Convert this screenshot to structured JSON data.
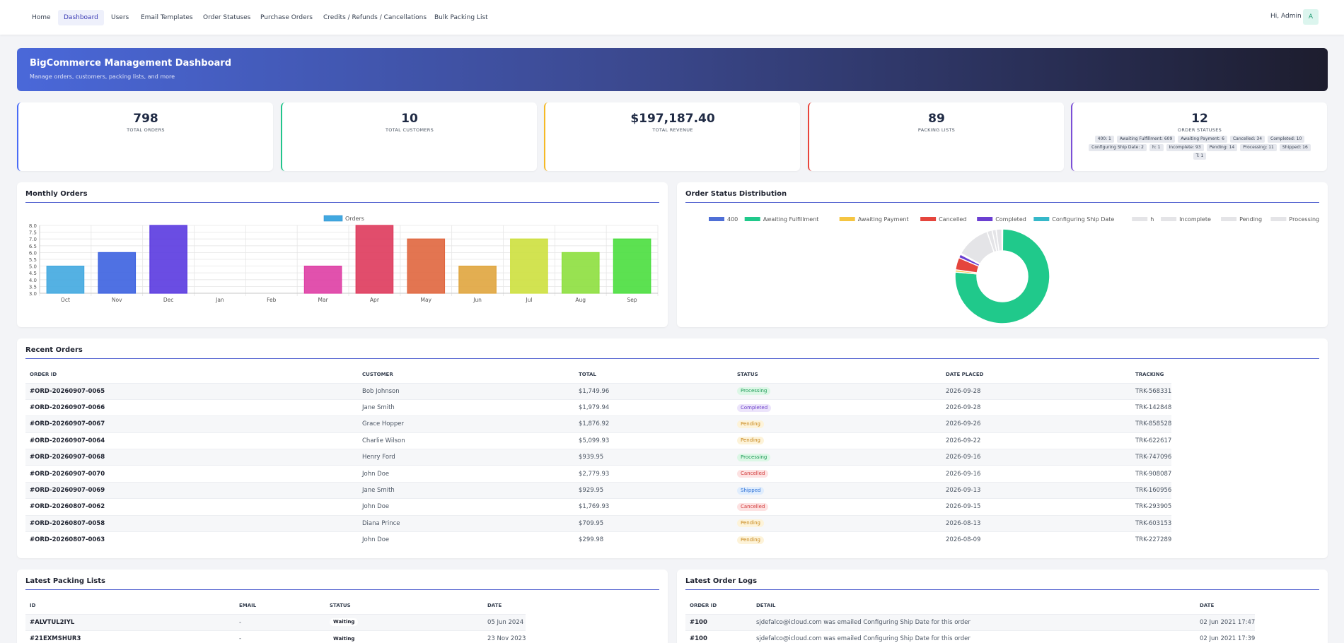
{
  "nav": {
    "items": [
      "Home",
      "Dashboard",
      "Users",
      "Email Templates",
      "Order Statuses",
      "Purchase Orders",
      "Credits / Refunds / Cancellations",
      "Bulk Packing List"
    ],
    "active_index": 1,
    "greeting": "Hi, Admin",
    "avatar_letter": "A"
  },
  "banner": {
    "title": "BigCommerce Management Dashboard",
    "subtitle": "Manage orders, customers, packing lists, and more"
  },
  "stats": [
    {
      "value": "798",
      "label": "TOTAL ORDERS",
      "color": "#4a6cf7"
    },
    {
      "value": "10",
      "label": "TOTAL CUSTOMERS",
      "color": "#22c58b"
    },
    {
      "value": "$197,187.40",
      "label": "TOTAL REVENUE",
      "color": "#f5b925"
    },
    {
      "value": "89",
      "label": "PACKING LISTS",
      "color": "#e8453c"
    },
    {
      "value": "12",
      "label": "ORDER STATUSES",
      "color": "#7b4fd6"
    }
  ],
  "status_chips": [
    "400: 1",
    "Awaiting Fulfillment: 609",
    "Awaiting Payment: 6",
    "Cancelled: 34",
    "Completed: 10",
    "Configuring Ship Date: 2",
    "h: 1",
    "Incomplete: 93",
    "Pending: 14",
    "Processing: 11",
    "Shipped: 16",
    "T: 1"
  ],
  "monthly": {
    "title": "Monthly Orders",
    "chart_data": {
      "type": "bar",
      "categories": [
        "Oct",
        "Nov",
        "Dec",
        "Jan",
        "Feb",
        "Mar",
        "Apr",
        "May",
        "Jun",
        "Jul",
        "Aug",
        "Sep"
      ],
      "series": [
        {
          "name": "Orders",
          "values": [
            5,
            6,
            8,
            null,
            null,
            5,
            8,
            7,
            5,
            7,
            6,
            7
          ]
        }
      ],
      "ylim": [
        3,
        8
      ],
      "yticks": [
        "3.0",
        "3.5",
        "4.0",
        "4.5",
        "5.0",
        "5.5",
        "6.0",
        "6.5",
        "7.0",
        "7.5",
        "8.0"
      ],
      "colors": [
        "#41a8e0",
        "#3c62e0",
        "#5a3ae0",
        "#6a36d9",
        "#b33ad8",
        "#de3ea4",
        "#de3a5c",
        "#e0663e",
        "#e0a53e",
        "#cde03e",
        "#8ddf3e",
        "#4ade3e"
      ],
      "grid": true,
      "legend": "top"
    }
  },
  "distribution": {
    "title": "Order Status Distribution",
    "chart_data": {
      "type": "pie",
      "labels": [
        "400",
        "Awaiting Fulfillment",
        "Awaiting Payment",
        "Cancelled",
        "Completed",
        "Configuring Ship Date",
        "h",
        "Incomplete",
        "Pending",
        "Processing",
        "Shipped",
        "T"
      ],
      "values": [
        1,
        609,
        6,
        34,
        10,
        2,
        1,
        93,
        14,
        11,
        16,
        1
      ],
      "colors": [
        "#4f6fd6",
        "#20c98b",
        "#f5c542",
        "#e5453d",
        "#6b3fd1",
        "#36b8c9",
        "#e4e4e7",
        "#e4e4e7",
        "#e4e4e7",
        "#e4e4e7",
        "#e4e4e7",
        "#e4e4e7"
      ],
      "legend": "top"
    }
  },
  "recent_orders": {
    "title": "Recent Orders",
    "headers": [
      "ORDER ID",
      "CUSTOMER",
      "TOTAL",
      "STATUS",
      "DATE PLACED",
      "TRACKING"
    ],
    "rows": [
      [
        "#ORD-20260907-0065",
        "Bob Johnson",
        "$1,749.96",
        "Processing",
        "2026-09-28",
        "TRK-568331"
      ],
      [
        "#ORD-20260907-0066",
        "Jane Smith",
        "$1,979.94",
        "Completed",
        "2026-09-28",
        "TRK-142848"
      ],
      [
        "#ORD-20260907-0067",
        "Grace Hopper",
        "$1,876.92",
        "Pending",
        "2026-09-26",
        "TRK-858528"
      ],
      [
        "#ORD-20260907-0064",
        "Charlie Wilson",
        "$5,099.93",
        "Pending",
        "2026-09-22",
        "TRK-622617"
      ],
      [
        "#ORD-20260907-0068",
        "Henry Ford",
        "$939.95",
        "Processing",
        "2026-09-16",
        "TRK-747096"
      ],
      [
        "#ORD-20260907-0070",
        "John Doe",
        "$2,779.93",
        "Cancelled",
        "2026-09-16",
        "TRK-908087"
      ],
      [
        "#ORD-20260907-0069",
        "Jane Smith",
        "$929.95",
        "Shipped",
        "2026-09-13",
        "TRK-160956"
      ],
      [
        "#ORD-20260807-0062",
        "John Doe",
        "$1,769.93",
        "Cancelled",
        "2026-09-15",
        "TRK-293905"
      ],
      [
        "#ORD-20260807-0058",
        "Diana Prince",
        "$709.95",
        "Pending",
        "2026-08-13",
        "TRK-603153"
      ],
      [
        "#ORD-20260807-0063",
        "John Doe",
        "$299.98",
        "Pending",
        "2026-08-09",
        "TRK-227289"
      ]
    ],
    "status_styles": {
      "Processing": {
        "bg": "#dcf7e6",
        "fg": "#1b9a55"
      },
      "Completed": {
        "bg": "#ece4fb",
        "fg": "#6b3fc9"
      },
      "Pending": {
        "bg": "#fdf3d9",
        "fg": "#c7861a"
      },
      "Cancelled": {
        "bg": "#fde2e2",
        "fg": "#d13a3a"
      },
      "Shipped": {
        "bg": "#e0edfd",
        "fg": "#2a6fd6"
      },
      "Waiting": {
        "bg": "#ffffff",
        "fg": "#1f2330"
      }
    }
  },
  "packing": {
    "title": "Latest Packing Lists",
    "headers": [
      "ID",
      "EMAIL",
      "STATUS",
      "DATE"
    ],
    "rows": [
      [
        "#ALVTUL2IYL",
        "-",
        "Waiting",
        "05 Jun 2024"
      ],
      [
        "#21EXMSHUR3",
        "-",
        "Waiting",
        "23 Nov 2023"
      ]
    ]
  },
  "logs": {
    "title": "Latest Order Logs",
    "headers": [
      "ORDER ID",
      "DETAIL",
      "DATE"
    ],
    "rows": [
      [
        "#100",
        "sjdefalco@icloud.com was emailed Configuring Ship Date for this order",
        "02 Jun 2021 17:47"
      ],
      [
        "#100",
        "sjdefalco@icloud.com was emailed Configuring Ship Date for this order",
        "02 Jun 2021 17:39"
      ]
    ]
  }
}
